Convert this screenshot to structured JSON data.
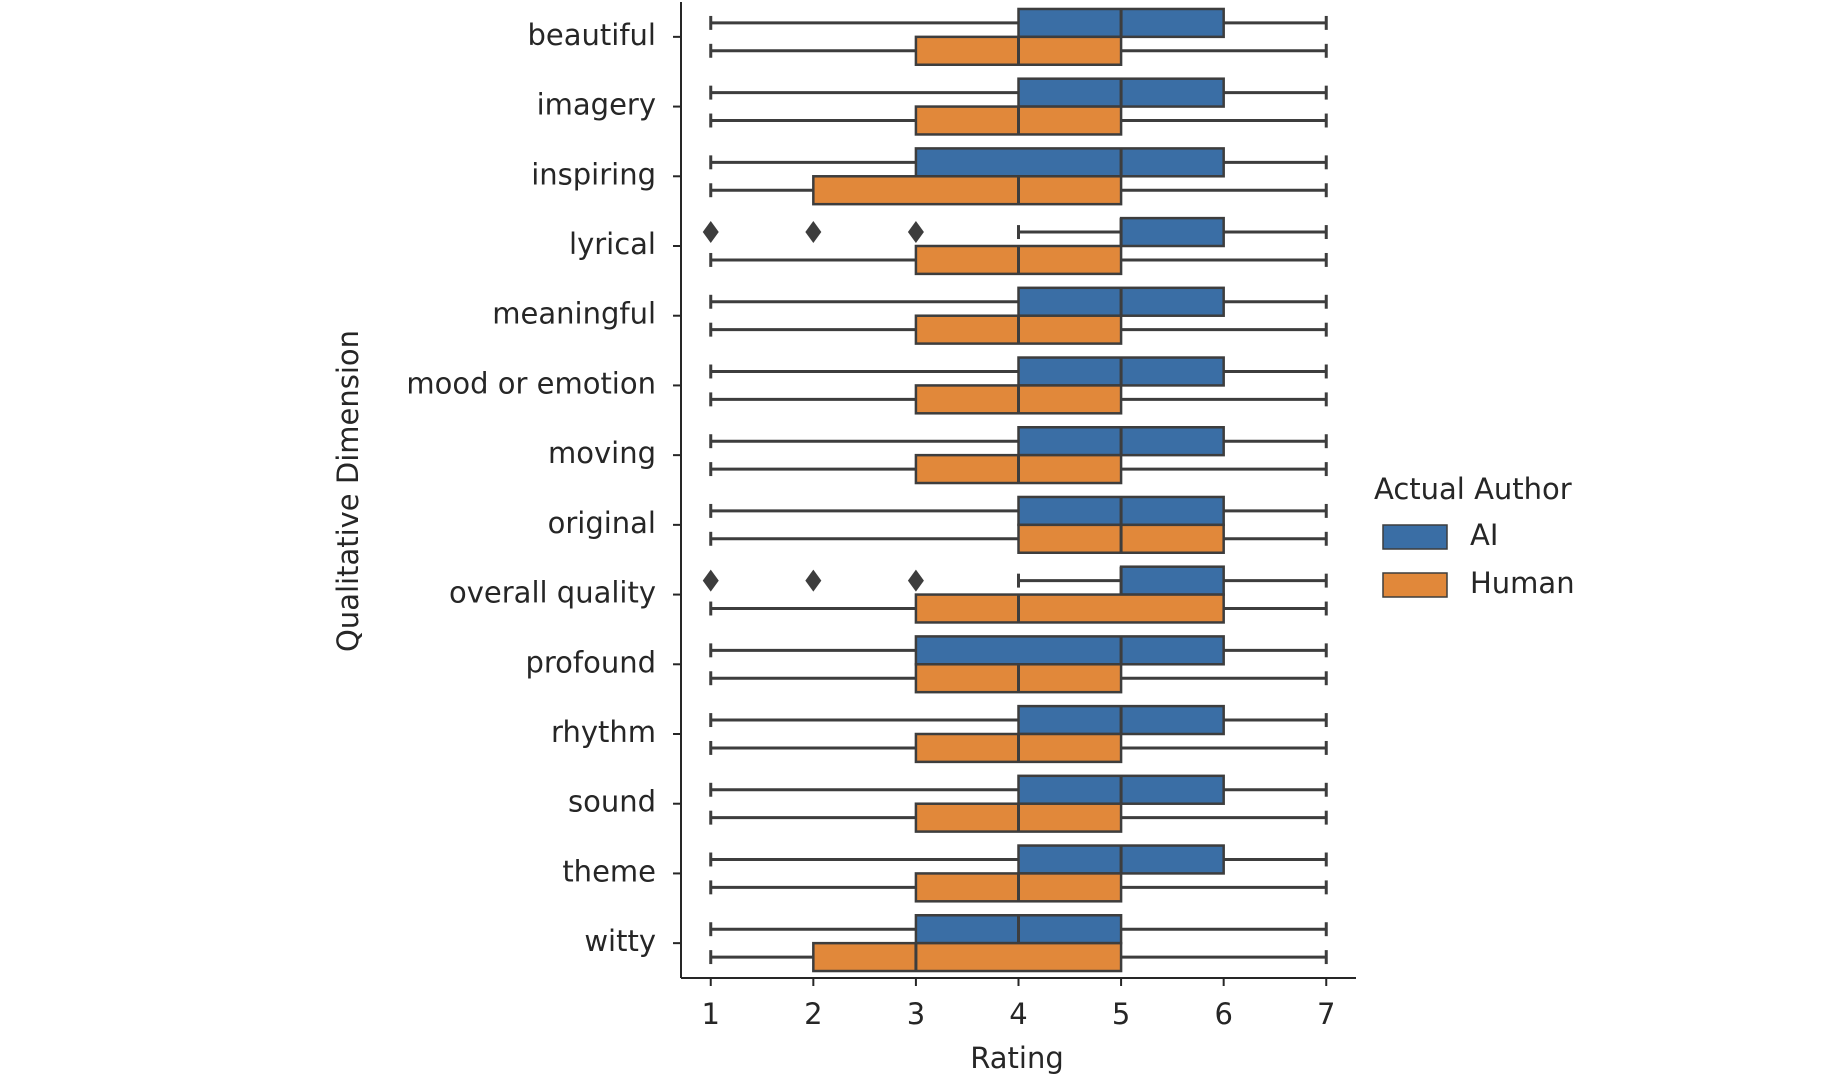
{
  "chart_data": {
    "type": "box",
    "x_label": "Rating",
    "y_label": "Qualitative Dimension",
    "legend_title": "Actual Author",
    "legend_position": "right",
    "categories": [
      "beautiful",
      "imagery",
      "inspiring",
      "lyrical",
      "meaningful",
      "mood or emotion",
      "moving",
      "original",
      "overall quality",
      "profound",
      "rhythm",
      "sound",
      "theme",
      "witty"
    ],
    "series": [
      {
        "name": "AI",
        "color": "#3a6ea5",
        "min": [
          1,
          1,
          1,
          4,
          1,
          1,
          1,
          1,
          4,
          1,
          1,
          1,
          1,
          1
        ],
        "q1": [
          4,
          4,
          3,
          5,
          4,
          4,
          4,
          4,
          5,
          3,
          4,
          4,
          4,
          3
        ],
        "median": [
          5,
          5,
          5,
          5,
          5,
          5,
          5,
          5,
          5,
          5,
          5,
          5,
          5,
          4
        ],
        "q3": [
          6,
          6,
          6,
          6,
          6,
          6,
          6,
          6,
          6,
          6,
          6,
          6,
          6,
          5
        ],
        "max": [
          7,
          7,
          7,
          7,
          7,
          7,
          7,
          7,
          7,
          7,
          7,
          7,
          7,
          7
        ],
        "outliers": [
          [],
          [],
          [],
          [
            1,
            2,
            3
          ],
          [],
          [],
          [],
          [],
          [
            1,
            2,
            3
          ],
          [],
          [],
          [],
          [],
          []
        ]
      },
      {
        "name": "Human",
        "color": "#e1883a",
        "min": [
          1,
          1,
          1,
          1,
          1,
          1,
          1,
          1,
          1,
          1,
          1,
          1,
          1,
          1
        ],
        "q1": [
          3,
          3,
          2,
          3,
          3,
          3,
          3,
          4,
          3,
          3,
          3,
          3,
          3,
          2
        ],
        "median": [
          4,
          4,
          4,
          4,
          4,
          4,
          4,
          5,
          4,
          4,
          4,
          4,
          4,
          3
        ],
        "q3": [
          5,
          5,
          5,
          5,
          5,
          5,
          5,
          6,
          6,
          5,
          5,
          5,
          5,
          5
        ],
        "max": [
          7,
          7,
          7,
          7,
          7,
          7,
          7,
          7,
          7,
          7,
          7,
          7,
          7,
          7
        ],
        "outliers": [
          [],
          [],
          [],
          [],
          [],
          [],
          [],
          [],
          [],
          [],
          [],
          [],
          [],
          []
        ]
      }
    ],
    "xlim": [
      0.71,
      7.29
    ],
    "xticks": [
      1,
      2,
      3,
      4,
      5,
      6,
      7
    ]
  }
}
